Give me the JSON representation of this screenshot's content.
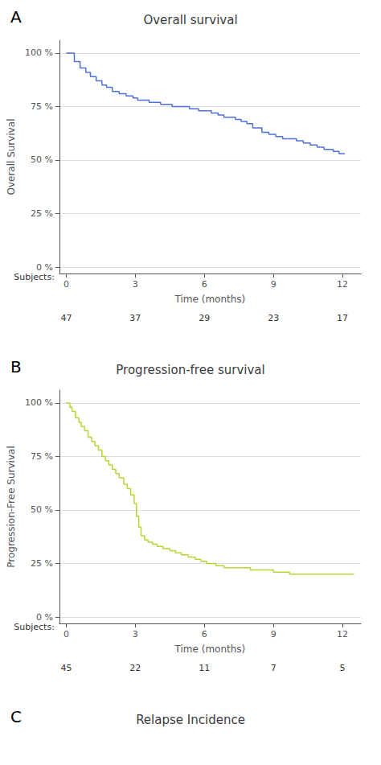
{
  "chart_data": [
    {
      "type": "step",
      "title": "Overall survival",
      "panel_label": "A",
      "xlabel": "Time (months)",
      "ylabel": "Overall Survival",
      "x": [
        0.0,
        0.25,
        0.35,
        0.6,
        0.85,
        1.05,
        1.3,
        1.55,
        1.75,
        2.0,
        2.3,
        2.6,
        2.9,
        3.1,
        3.35,
        3.6,
        3.85,
        4.1,
        4.35,
        4.6,
        4.85,
        5.1,
        5.35,
        5.55,
        5.75,
        6.0,
        6.3,
        6.6,
        6.85,
        7.1,
        7.35,
        7.6,
        7.85,
        8.1,
        8.5,
        8.8,
        9.1,
        9.4,
        9.7,
        10.0,
        10.3,
        10.6,
        10.9,
        11.2,
        11.6,
        11.85,
        12.1
      ],
      "values": [
        100,
        100,
        96,
        93,
        91,
        89,
        87,
        85,
        84,
        82,
        81,
        80,
        79,
        78,
        78,
        77,
        77,
        76,
        76,
        75,
        75,
        75,
        74,
        74,
        73,
        73,
        72,
        71,
        70,
        70,
        69,
        68,
        67,
        65,
        63,
        62,
        61,
        60,
        60,
        59,
        58,
        57,
        56,
        55,
        54,
        53,
        53
      ],
      "xlim": [
        -0.3,
        12.8
      ],
      "xticks": [
        0,
        3,
        6,
        9,
        12
      ],
      "ylim": [
        -3,
        106
      ],
      "yticks": [
        {
          "value": 0,
          "label": "0 %"
        },
        {
          "value": 25,
          "label": "25 %"
        },
        {
          "value": 50,
          "label": "50 %"
        },
        {
          "value": 75,
          "label": "75 %"
        },
        {
          "value": 100,
          "label": "100 %"
        }
      ],
      "grid": true,
      "at_risk": {
        "label": "Subjects:",
        "x": [
          0,
          3,
          6,
          9,
          12
        ],
        "values": [
          47,
          37,
          29,
          23,
          17
        ]
      }
    },
    {
      "type": "step",
      "title": "Progression-free survival",
      "panel_label": "B",
      "xlabel": "Time (months)",
      "ylabel": "Progression-Free Survival",
      "x": [
        0.0,
        0.15,
        0.25,
        0.4,
        0.55,
        0.65,
        0.8,
        0.95,
        1.1,
        1.25,
        1.4,
        1.55,
        1.7,
        1.85,
        2.0,
        2.15,
        2.3,
        2.5,
        2.65,
        2.8,
        2.95,
        3.05,
        3.15,
        3.25,
        3.4,
        3.55,
        3.75,
        3.95,
        4.2,
        4.5,
        4.75,
        5.0,
        5.3,
        5.6,
        5.85,
        6.1,
        6.5,
        6.85,
        7.2,
        8.0,
        8.5,
        9.0,
        9.3,
        9.7,
        10.2,
        11.0,
        11.5,
        12.0,
        12.5
      ],
      "values": [
        100,
        98,
        96,
        93,
        91,
        89,
        87,
        84,
        82,
        80,
        78,
        75,
        73,
        71,
        69,
        67,
        65,
        62,
        60,
        57,
        53,
        47,
        42,
        38,
        36,
        35,
        34,
        33,
        32,
        31,
        30,
        29,
        28,
        27,
        26,
        25,
        24,
        23,
        23,
        22,
        22,
        21,
        21,
        20,
        20,
        20,
        20,
        20,
        20
      ],
      "xlim": [
        -0.3,
        12.8
      ],
      "xticks": [
        0,
        3,
        6,
        9,
        12
      ],
      "ylim": [
        -3,
        106
      ],
      "yticks": [
        {
          "value": 0,
          "label": "0 %"
        },
        {
          "value": 25,
          "label": "25 %"
        },
        {
          "value": 50,
          "label": "50 %"
        },
        {
          "value": 75,
          "label": "75 %"
        },
        {
          "value": 100,
          "label": "100 %"
        }
      ],
      "grid": true,
      "at_risk": {
        "label": "Subjects:",
        "x": [
          0,
          3,
          6,
          9,
          12
        ],
        "values": [
          45,
          22,
          11,
          7,
          5
        ]
      }
    },
    {
      "type": "empty",
      "title": "Relapse Incidence",
      "panel_label": "C"
    }
  ]
}
